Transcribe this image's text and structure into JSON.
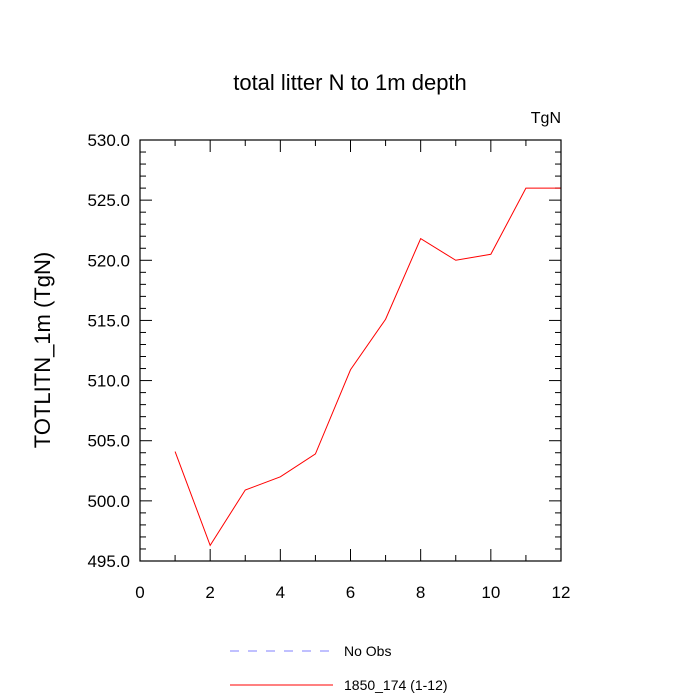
{
  "chart_data": {
    "type": "line",
    "title": "total litter N to 1m depth",
    "units_label": "TgN",
    "xlabel": "",
    "ylabel": "TOTLITN_1m  (TgN)",
    "xlim": [
      0,
      12
    ],
    "ylim": [
      495.0,
      530.0
    ],
    "x_ticks": [
      "0",
      "2",
      "4",
      "6",
      "8",
      "10",
      "12"
    ],
    "y_ticks": [
      "495.0",
      "500.0",
      "505.0",
      "510.0",
      "515.0",
      "520.0",
      "525.0",
      "530.0"
    ],
    "grid": false,
    "legend_position": "bottom-center",
    "series": [
      {
        "name": "No Obs",
        "color": "#8080ff",
        "dash": "dashed",
        "x": [],
        "values": []
      },
      {
        "name": "1850_174 (1-12)",
        "color": "#ff0000",
        "dash": "solid",
        "x": [
          1,
          2,
          3,
          4,
          5,
          6,
          7,
          8,
          9,
          10,
          11,
          12
        ],
        "values": [
          504.1,
          496.3,
          500.9,
          502.0,
          503.9,
          510.9,
          515.1,
          521.8,
          520.0,
          520.5,
          526.0,
          526.0
        ]
      }
    ]
  }
}
